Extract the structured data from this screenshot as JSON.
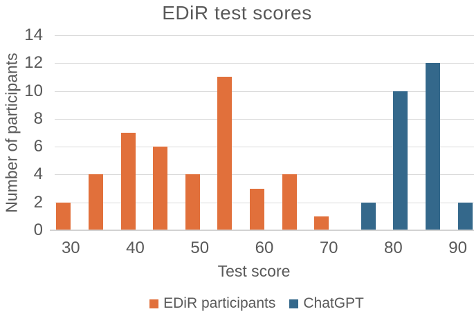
{
  "chart_data": {
    "type": "bar",
    "title": "EDiR test scores",
    "xlabel": "Test score",
    "ylabel": "Number of participants",
    "categories": [
      30,
      35,
      40,
      45,
      50,
      55,
      60,
      65,
      70,
      75,
      80,
      85,
      90
    ],
    "series": [
      {
        "name": "EDiR participants",
        "color": "#e1703b",
        "values": [
          2,
          4,
          7,
          6,
          4,
          11,
          3,
          4,
          1,
          null,
          null,
          null,
          null
        ]
      },
      {
        "name": "ChatGPT",
        "color": "#34688b",
        "values": [
          null,
          null,
          null,
          null,
          null,
          null,
          null,
          null,
          null,
          2,
          10,
          12,
          2
        ]
      }
    ],
    "ylim": [
      0,
      14
    ],
    "yticks": [
      0,
      2,
      4,
      6,
      8,
      10,
      12,
      14
    ],
    "xticks_shown": [
      30,
      40,
      50,
      60,
      70,
      80,
      90
    ],
    "grid": true,
    "legend_position": "bottom",
    "colors": {
      "text": "#595959",
      "gridline": "#d9d9d9",
      "axis_line": "#d2d2d2",
      "background": "#ffffff"
    }
  }
}
